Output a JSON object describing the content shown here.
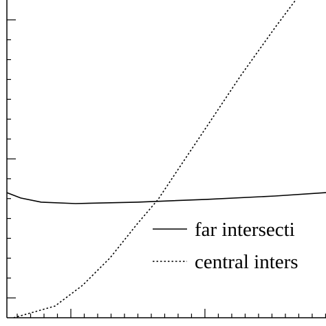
{
  "chart_data": {
    "type": "line",
    "xlim": [
      0.523,
      2.903
    ],
    "ylim": [
      0,
      16
    ],
    "xticks": [
      0.6,
      0.7,
      0.8,
      0.9,
      1,
      1.1,
      1.2,
      1.3,
      1.4,
      1.5,
      1.6,
      1.7,
      1.8,
      1.9,
      2,
      2.1,
      2.2,
      2.3,
      2.4,
      2.5,
      2.6,
      2.7,
      2.8,
      2.9
    ],
    "xticks_major": [
      1,
      2
    ],
    "yticks": [
      1,
      2,
      3,
      4,
      5,
      6,
      7,
      8,
      9,
      10,
      11,
      12,
      13,
      14,
      15
    ],
    "yticks_major": [
      1,
      8,
      15
    ],
    "tick_labels": false,
    "series": [
      {
        "name": "far intersecti",
        "color": "#000000",
        "dash": "solid",
        "x": [
          0.523,
          0.626,
          0.779,
          1.036,
          1.497,
          2.01,
          2.523,
          2.903
        ],
        "values": [
          6.3,
          6.03,
          5.82,
          5.75,
          5.82,
          5.96,
          6.13,
          6.3
        ]
      },
      {
        "name": "central inters",
        "color": "#000000",
        "dash": "dotted",
        "x": [
          0.574,
          0.882,
          1.087,
          1.292,
          1.497,
          1.651,
          1.805,
          2.01,
          2.267,
          2.523,
          2.677
        ],
        "values": [
          0,
          0.59,
          1.63,
          3.01,
          4.74,
          5.96,
          7.52,
          9.59,
          12.19,
          14.61,
          16
        ]
      }
    ]
  }
}
